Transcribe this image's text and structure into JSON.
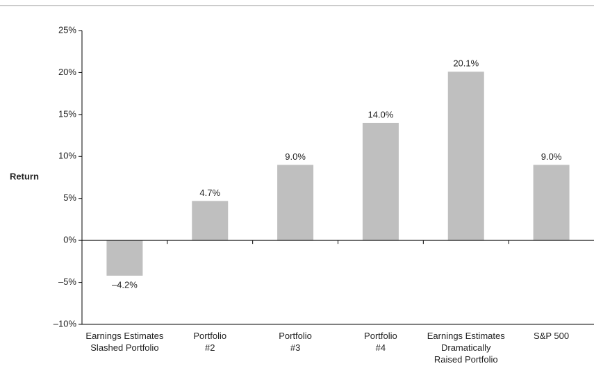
{
  "chart_data": {
    "type": "bar",
    "ylabel": "Return",
    "categories": [
      "Earnings Estimates\nSlashed Portfolio",
      "Portfolio\n#2",
      "Portfolio\n#3",
      "Portfolio\n#4",
      "Earnings Estimates\nDramatically\nRaised Portfolio",
      "S&P 500"
    ],
    "values": [
      -4.2,
      4.7,
      9.0,
      14.0,
      20.1,
      9.0
    ],
    "value_labels": [
      "–4.2%",
      "4.7%",
      "9.0%",
      "14.0%",
      "20.1%",
      "9.0%"
    ],
    "color": "#bfbfbf",
    "ylim": [
      -10,
      25
    ],
    "yticks": [
      {
        "value": -10,
        "label": "–10%"
      },
      {
        "value": -5,
        "label": "–5%"
      },
      {
        "value": 0,
        "label": "0%"
      },
      {
        "value": 5,
        "label": "5%"
      },
      {
        "value": 10,
        "label": "10%"
      },
      {
        "value": 15,
        "label": "15%"
      },
      {
        "value": 20,
        "label": "20%"
      },
      {
        "value": 25,
        "label": "25%"
      }
    ],
    "grid": false
  }
}
